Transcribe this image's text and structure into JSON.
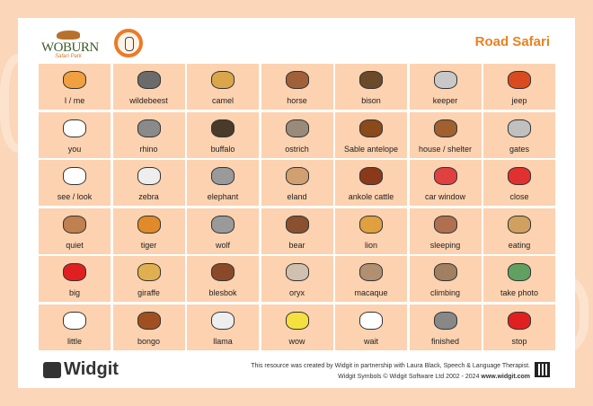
{
  "header": {
    "title": "Road Safari",
    "logo_text": "WOBURN",
    "logo_sub": "Safari Park"
  },
  "grid": [
    {
      "label": "I / me",
      "color": "#f0a040"
    },
    {
      "label": "wildebeest",
      "color": "#6b6b6b"
    },
    {
      "label": "camel",
      "color": "#d9a74a"
    },
    {
      "label": "horse",
      "color": "#a0603a"
    },
    {
      "label": "bison",
      "color": "#6b4a2a"
    },
    {
      "label": "keeper",
      "color": "#c8c8c8"
    },
    {
      "label": "jeep",
      "color": "#d94b1f"
    },
    {
      "label": "you",
      "color": "#ffffff"
    },
    {
      "label": "rhino",
      "color": "#8a8a8a"
    },
    {
      "label": "buffalo",
      "color": "#4a3a2a"
    },
    {
      "label": "ostrich",
      "color": "#9a8a7a"
    },
    {
      "label": "Sable antelope",
      "color": "#8a4a1a"
    },
    {
      "label": "house / shelter",
      "color": "#a06030"
    },
    {
      "label": "gates",
      "color": "#c0c0c0"
    },
    {
      "label": "see / look",
      "color": "#ffffff"
    },
    {
      "label": "zebra",
      "color": "#eeeeee"
    },
    {
      "label": "elephant",
      "color": "#9a9a9a"
    },
    {
      "label": "eland",
      "color": "#d0a070"
    },
    {
      "label": "ankole cattle",
      "color": "#8a3a1a"
    },
    {
      "label": "car window",
      "color": "#e04040"
    },
    {
      "label": "close",
      "color": "#e03030"
    },
    {
      "label": "quiet",
      "color": "#c08050"
    },
    {
      "label": "tiger",
      "color": "#e08a2a"
    },
    {
      "label": "wolf",
      "color": "#9a9a9a"
    },
    {
      "label": "bear",
      "color": "#8a5030"
    },
    {
      "label": "lion",
      "color": "#e0a040"
    },
    {
      "label": "sleeping",
      "color": "#b07050"
    },
    {
      "label": "eating",
      "color": "#d0a060"
    },
    {
      "label": "big",
      "color": "#e02020"
    },
    {
      "label": "giraffe",
      "color": "#e0b050"
    },
    {
      "label": "blesbok",
      "color": "#8a4a2a"
    },
    {
      "label": "oryx",
      "color": "#d0c0b0"
    },
    {
      "label": "macaque",
      "color": "#b09070"
    },
    {
      "label": "climbing",
      "color": "#a08060"
    },
    {
      "label": "take photo",
      "color": "#60a060"
    },
    {
      "label": "little",
      "color": "#ffffff"
    },
    {
      "label": "bongo",
      "color": "#a05020"
    },
    {
      "label": "llama",
      "color": "#eeeeee"
    },
    {
      "label": "wow",
      "color": "#f5e040"
    },
    {
      "label": "wait",
      "color": "#ffffff"
    },
    {
      "label": "finished",
      "color": "#888888"
    },
    {
      "label": "stop",
      "color": "#e02020"
    }
  ],
  "footer": {
    "brand": "Widgit",
    "credit_line1": "This resource was created by Widgit in partnership with Laura Black, Speech & Language Therapist.",
    "credit_line2": "Widgit Symbols © Widgit Software Ltd 2002 - 2024",
    "website": "www.widgit.com"
  },
  "colors": {
    "accent": "#e8821f",
    "cell": "#fcd2b0",
    "background": "#fbd6b8"
  }
}
